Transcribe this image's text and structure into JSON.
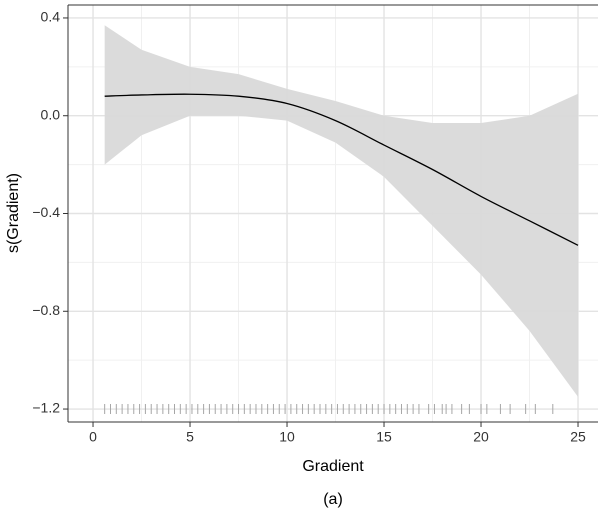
{
  "chart_data": {
    "type": "smooth",
    "caption": "(a)",
    "xlabel": "Gradient",
    "ylabel": "s(Gradient)",
    "x": [
      0.6,
      2.5,
      5,
      7.5,
      10,
      12.5,
      15,
      17.5,
      20,
      22.5,
      25
    ],
    "fit": {
      "color": "#000000",
      "values": [
        0.08,
        0.085,
        0.088,
        0.08,
        0.05,
        -0.02,
        -0.12,
        -0.22,
        -0.33,
        -0.43,
        -0.53
      ]
    },
    "band": {
      "color": "#d9d9d9",
      "upper": [
        0.37,
        0.27,
        0.2,
        0.17,
        0.11,
        0.06,
        0.0,
        -0.03,
        -0.03,
        0.0,
        0.09
      ],
      "lower": [
        -0.2,
        -0.08,
        0.0,
        0.0,
        -0.02,
        -0.11,
        -0.25,
        -0.45,
        -0.65,
        -0.88,
        -1.15
      ]
    },
    "rug": {
      "color": "#a6a6a6",
      "x": [
        0.6,
        0.9,
        1.2,
        1.5,
        1.8,
        2.1,
        2.4,
        2.7,
        3,
        3.3,
        3.6,
        3.9,
        4.2,
        4.5,
        4.8,
        5.1,
        5.4,
        5.7,
        6,
        6.3,
        6.6,
        6.9,
        7.2,
        7.5,
        7.8,
        8.1,
        8.4,
        8.7,
        9,
        9.3,
        9.6,
        9.9,
        10.2,
        10.5,
        10.8,
        11.1,
        11.4,
        11.7,
        12,
        12.3,
        12.6,
        12.9,
        13.2,
        13.5,
        13.8,
        14.1,
        14.4,
        14.7,
        15,
        15.3,
        15.6,
        15.9,
        16.2,
        16.5,
        16.8,
        17.3,
        17.6,
        18,
        18.2,
        18.5,
        19,
        19.4,
        20,
        20.3,
        21,
        21.5,
        22.3,
        22.8,
        23.7
      ]
    },
    "xlim": [
      -1.29,
      26.03
    ],
    "ylim": [
      -1.253,
      0.453
    ],
    "xticks": [
      0,
      5,
      10,
      15,
      20,
      25
    ],
    "yticks": [
      {
        "value": -1.2,
        "label": "−1.2"
      },
      {
        "value": -0.8,
        "label": "−0.8"
      },
      {
        "value": -0.4,
        "label": "−0.4"
      },
      {
        "value": 0,
        "label": "0.0"
      },
      {
        "value": 0.4,
        "label": "0.4"
      }
    ],
    "x_minor_grid": [
      2.5,
      7.5,
      12.5,
      17.5,
      22.5
    ],
    "y_minor_grid": [
      -1.0,
      -0.6,
      -0.2,
      0.2
    ],
    "grid": true
  }
}
